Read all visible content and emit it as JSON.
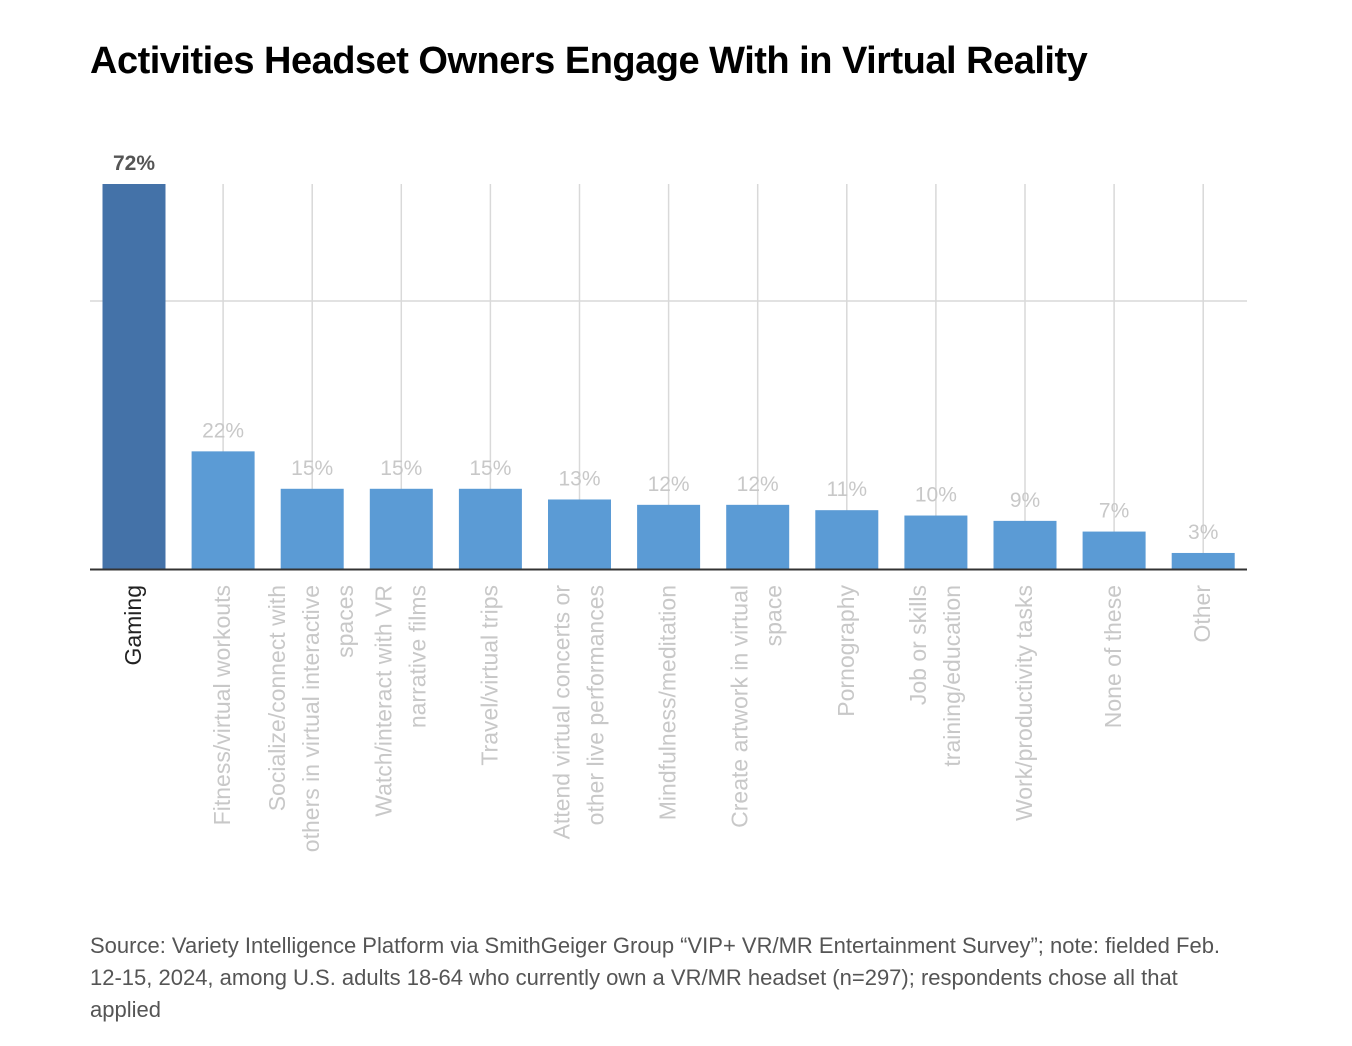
{
  "chart_data": {
    "type": "bar",
    "title": "Activities Headset Owners Engage With in Virtual Reality",
    "categories": [
      "Gaming",
      "Fitness/virtual workouts",
      "Socialize/connect with others in virtual interactive spaces",
      "Watch/interact with VR narrative films",
      "Travel/virtual trips",
      "Attend virtual concerts or other live performances",
      "Mindfulness/meditation",
      "Create artwork in virtual space",
      "Pornography",
      "Job or skills training/education",
      "Work/productivity tasks",
      "None of these",
      "Other"
    ],
    "category_lines": [
      [
        "Gaming"
      ],
      [
        "Fitness/virtual workouts"
      ],
      [
        "Socialize/connect with",
        "others in virtual interactive",
        "spaces"
      ],
      [
        "Watch/interact with VR",
        "narrative films"
      ],
      [
        "Travel/virtual trips"
      ],
      [
        "Attend virtual concerts or",
        "other live performances"
      ],
      [
        "Mindfulness/meditation"
      ],
      [
        "Create artwork in virtual",
        "space"
      ],
      [
        "Pornography"
      ],
      [
        "Job or skills",
        "training/education"
      ],
      [
        "Work/productivity tasks"
      ],
      [
        "None of these"
      ],
      [
        "Other"
      ]
    ],
    "values": [
      72,
      22,
      15,
      15,
      15,
      13,
      12,
      12,
      11,
      10,
      9,
      7,
      3
    ],
    "value_labels": [
      "72%",
      "22%",
      "15%",
      "15%",
      "15%",
      "13%",
      "12%",
      "12%",
      "11%",
      "10%",
      "9%",
      "7%",
      "3%"
    ],
    "highlight_index": 0,
    "ylim": [
      0,
      72
    ],
    "grid": true,
    "colors": {
      "highlight_bar": "#4472a8",
      "bar": "#5b9bd5",
      "highlight_label": "#555555",
      "label": "#c8c8c8",
      "grid": "#d9d9d9",
      "axis": "#333333"
    },
    "source": "Source: Variety Intelligence Platform via SmithGeiger Group “VIP+ VR/MR Entertainment Survey”; note: fielded Feb. 12-15, 2024, among U.S. adults 18-64 who currently own a VR/MR headset (n=297); respondents chose all that applied"
  }
}
